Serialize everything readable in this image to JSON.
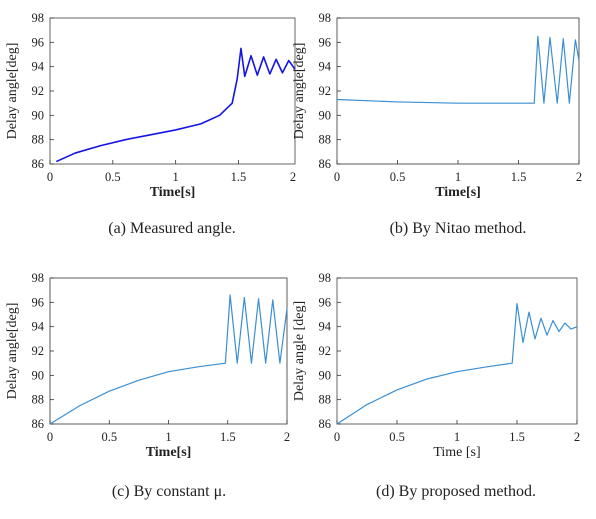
{
  "chart_data": [
    {
      "type": "line",
      "panel": "a",
      "caption": "(a)  Measured  angle.",
      "xlabel": "Time[s]",
      "ylabel": "Delay angle[deg]",
      "xlim": [
        0,
        1.95
      ],
      "ylim": [
        86,
        98
      ],
      "xticks": [
        "0",
        "0.5",
        "1",
        "1.5",
        "2"
      ],
      "yticks": [
        "86",
        "88",
        "90",
        "92",
        "94",
        "96",
        "98"
      ],
      "grid": false,
      "series": [
        {
          "color": "#1414e6",
          "x": [
            0.05,
            0.2,
            0.4,
            0.6,
            0.8,
            1.0,
            1.2,
            1.35,
            1.45,
            1.49,
            1.52,
            1.55,
            1.6,
            1.65,
            1.7,
            1.75,
            1.8,
            1.85,
            1.9,
            1.95
          ],
          "y": [
            86.2,
            86.9,
            87.5,
            88.0,
            88.4,
            88.8,
            89.3,
            90.0,
            91.0,
            93.0,
            95.5,
            93.2,
            94.9,
            93.3,
            94.8,
            93.4,
            94.6,
            93.5,
            94.5,
            93.8
          ]
        }
      ]
    },
    {
      "type": "line",
      "panel": "b",
      "caption": "(b)  By  Nitao  method.",
      "xlabel": "Time[s]",
      "ylabel": "Delay angle[deg]",
      "xlim": [
        0,
        2
      ],
      "ylim": [
        86,
        98
      ],
      "xticks": [
        "0",
        "0.5",
        "1",
        "1.5",
        "2"
      ],
      "yticks": [
        "86",
        "88",
        "90",
        "92",
        "94",
        "96",
        "98"
      ],
      "grid": false,
      "series": [
        {
          "color": "#3a8fd4",
          "x": [
            0,
            0.5,
            1.0,
            1.5,
            1.63,
            1.66,
            1.71,
            1.76,
            1.82,
            1.87,
            1.92,
            1.97,
            2.0
          ],
          "y": [
            91.3,
            91.1,
            91.0,
            91.0,
            91.0,
            96.5,
            91.0,
            96.4,
            91.0,
            96.3,
            91.0,
            96.2,
            94.5
          ]
        }
      ]
    },
    {
      "type": "line",
      "panel": "c",
      "caption": "(c)  By  constant  μ.",
      "xlabel": "Time[s]",
      "ylabel": "Delay angle[deg]",
      "xlim": [
        0,
        2
      ],
      "ylim": [
        86,
        98
      ],
      "xticks": [
        "0",
        "0.5",
        "1",
        "1.5",
        "2"
      ],
      "yticks": [
        "86",
        "88",
        "90",
        "92",
        "94",
        "96",
        "98"
      ],
      "grid": false,
      "series": [
        {
          "color": "#3a8fd4",
          "x": [
            0,
            0.25,
            0.5,
            0.75,
            1.0,
            1.25,
            1.48,
            1.52,
            1.58,
            1.64,
            1.7,
            1.76,
            1.82,
            1.88,
            1.94,
            2.0
          ],
          "y": [
            86.0,
            87.5,
            88.7,
            89.6,
            90.3,
            90.7,
            91.0,
            96.6,
            91.0,
            96.4,
            91.0,
            96.3,
            91.0,
            96.2,
            91.0,
            95.5
          ]
        }
      ]
    },
    {
      "type": "line",
      "panel": "d",
      "caption": "(d)  By  proposed  method.",
      "xlabel": "Time [s]",
      "ylabel": "Delay angle [deg]",
      "xlim": [
        0,
        2
      ],
      "ylim": [
        86,
        98
      ],
      "xticks": [
        "0",
        "0.5",
        "1",
        "1.5",
        "2"
      ],
      "yticks": [
        "86",
        "88",
        "90",
        "92",
        "94",
        "96",
        "98"
      ],
      "grid": false,
      "series": [
        {
          "color": "#3a8fd4",
          "x": [
            0,
            0.25,
            0.5,
            0.75,
            1.0,
            1.25,
            1.46,
            1.5,
            1.55,
            1.6,
            1.65,
            1.7,
            1.75,
            1.8,
            1.85,
            1.9,
            1.95,
            2.0
          ],
          "y": [
            86.0,
            87.6,
            88.8,
            89.7,
            90.3,
            90.7,
            91.0,
            95.9,
            92.7,
            95.2,
            93.0,
            94.7,
            93.3,
            94.5,
            93.6,
            94.3,
            93.8,
            94.0
          ]
        }
      ]
    }
  ]
}
